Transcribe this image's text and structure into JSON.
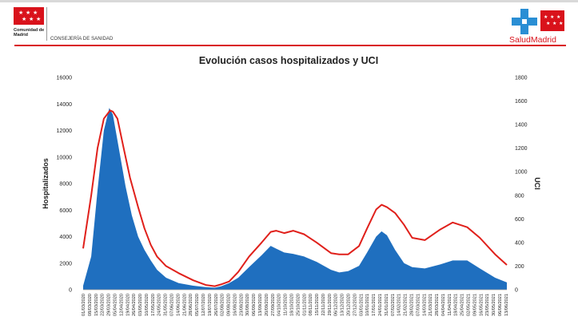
{
  "header": {
    "left_org": "Comunidad de Madrid",
    "department": "CONSEJERÍA DE SANIDAD",
    "right_brand": "SaludMadrid",
    "brand_color": "#d9121b",
    "accent_blue": "#2a8ed4"
  },
  "chart_data": {
    "type": "area+line",
    "title": "Evolución casos hospitalizados y UCI",
    "ylabel": "Hospitalizados",
    "y2label": "UCI",
    "ylim": [
      0,
      16000
    ],
    "y2lim": [
      0,
      1800
    ],
    "yticks": [
      "0",
      "2000",
      "4000",
      "6000",
      "8000",
      "10000",
      "12000",
      "14000",
      "16000"
    ],
    "y2ticks": [
      "0",
      "200",
      "400",
      "600",
      "800",
      "1000",
      "1200",
      "1400",
      "1600",
      "1800"
    ],
    "date_range": [
      "01/03/2020",
      "14/06/2021"
    ],
    "x_tick_interval_days": 7,
    "colors": {
      "hospitalizados": "#1f6fbf",
      "uci": "#e0201b"
    },
    "series": [
      {
        "name": "Hospitalizados",
        "axis": "left",
        "style": "area",
        "points": [
          [
            "2020-03-01",
            300
          ],
          [
            "2020-03-10",
            2500
          ],
          [
            "2020-03-17",
            7500
          ],
          [
            "2020-03-24",
            12000
          ],
          [
            "2020-03-30",
            13700
          ],
          [
            "2020-04-03",
            13200
          ],
          [
            "2020-04-10",
            10500
          ],
          [
            "2020-04-17",
            7800
          ],
          [
            "2020-04-24",
            5600
          ],
          [
            "2020-05-01",
            4000
          ],
          [
            "2020-05-08",
            3000
          ],
          [
            "2020-05-15",
            2200
          ],
          [
            "2020-05-22",
            1500
          ],
          [
            "2020-06-01",
            900
          ],
          [
            "2020-06-15",
            500
          ],
          [
            "2020-07-01",
            300
          ],
          [
            "2020-07-15",
            200
          ],
          [
            "2020-07-25",
            150
          ],
          [
            "2020-08-01",
            250
          ],
          [
            "2020-08-10",
            500
          ],
          [
            "2020-08-20",
            900
          ],
          [
            "2020-09-01",
            1700
          ],
          [
            "2020-09-15",
            2600
          ],
          [
            "2020-09-25",
            3300
          ],
          [
            "2020-10-01",
            3100
          ],
          [
            "2020-10-10",
            2800
          ],
          [
            "2020-10-20",
            2700
          ],
          [
            "2020-11-01",
            2500
          ],
          [
            "2020-11-15",
            2100
          ],
          [
            "2020-12-01",
            1500
          ],
          [
            "2020-12-10",
            1300
          ],
          [
            "2020-12-20",
            1400
          ],
          [
            "2021-01-01",
            1800
          ],
          [
            "2021-01-10",
            2800
          ],
          [
            "2021-01-20",
            4000
          ],
          [
            "2021-01-26",
            4400
          ],
          [
            "2021-02-01",
            4100
          ],
          [
            "2021-02-10",
            3000
          ],
          [
            "2021-02-20",
            2000
          ],
          [
            "2021-03-01",
            1700
          ],
          [
            "2021-03-15",
            1600
          ],
          [
            "2021-04-01",
            1900
          ],
          [
            "2021-04-15",
            2200
          ],
          [
            "2021-05-01",
            2200
          ],
          [
            "2021-05-15",
            1600
          ],
          [
            "2021-06-01",
            900
          ],
          [
            "2021-06-14",
            550
          ]
        ]
      },
      {
        "name": "UCI",
        "axis": "right",
        "style": "line",
        "points": [
          [
            "2020-03-01",
            350
          ],
          [
            "2020-03-10",
            800
          ],
          [
            "2020-03-17",
            1200
          ],
          [
            "2020-03-24",
            1450
          ],
          [
            "2020-03-31",
            1520
          ],
          [
            "2020-04-03",
            1510
          ],
          [
            "2020-04-08",
            1450
          ],
          [
            "2020-04-15",
            1200
          ],
          [
            "2020-04-22",
            950
          ],
          [
            "2020-05-01",
            700
          ],
          [
            "2020-05-08",
            520
          ],
          [
            "2020-05-15",
            380
          ],
          [
            "2020-05-22",
            280
          ],
          [
            "2020-06-01",
            200
          ],
          [
            "2020-06-15",
            140
          ],
          [
            "2020-07-01",
            80
          ],
          [
            "2020-07-15",
            40
          ],
          [
            "2020-07-25",
            30
          ],
          [
            "2020-08-01",
            45
          ],
          [
            "2020-08-10",
            70
          ],
          [
            "2020-08-20",
            150
          ],
          [
            "2020-09-01",
            280
          ],
          [
            "2020-09-15",
            400
          ],
          [
            "2020-09-25",
            490
          ],
          [
            "2020-10-01",
            500
          ],
          [
            "2020-10-10",
            480
          ],
          [
            "2020-10-20",
            500
          ],
          [
            "2020-11-01",
            470
          ],
          [
            "2020-11-15",
            400
          ],
          [
            "2020-12-01",
            310
          ],
          [
            "2020-12-10",
            300
          ],
          [
            "2020-12-20",
            300
          ],
          [
            "2021-01-01",
            370
          ],
          [
            "2021-01-10",
            520
          ],
          [
            "2021-01-20",
            680
          ],
          [
            "2021-01-26",
            720
          ],
          [
            "2021-02-01",
            700
          ],
          [
            "2021-02-10",
            650
          ],
          [
            "2021-02-20",
            550
          ],
          [
            "2021-03-01",
            440
          ],
          [
            "2021-03-15",
            420
          ],
          [
            "2021-04-01",
            510
          ],
          [
            "2021-04-15",
            570
          ],
          [
            "2021-05-01",
            530
          ],
          [
            "2021-05-15",
            440
          ],
          [
            "2021-06-01",
            300
          ],
          [
            "2021-06-14",
            210
          ]
        ]
      }
    ],
    "grid": false,
    "legend": "none"
  }
}
